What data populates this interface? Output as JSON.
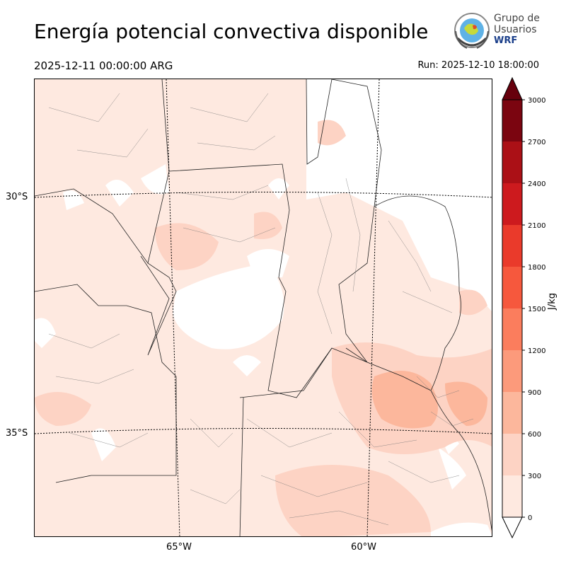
{
  "header": {
    "title": "Energía potencial convectiva disponible",
    "valid_time": "2025-12-11 00:00:00 ARG",
    "run_time": "Run: 2025-12-10 18:00:00"
  },
  "logo": {
    "line1": "Grupo de",
    "line2": "Usuarios",
    "line3": "WRF"
  },
  "map": {
    "lat_labels": [
      "30°S",
      "35°S"
    ],
    "lon_labels": [
      "65°W",
      "60°W"
    ]
  },
  "colorbar": {
    "unit": "J/kg",
    "ticks": [
      "0",
      "300",
      "600",
      "900",
      "1200",
      "1500",
      "1800",
      "2100",
      "2400",
      "2700",
      "3000"
    ],
    "levels": [
      0,
      300,
      600,
      900,
      1200,
      1500,
      1800,
      2100,
      2400,
      2700,
      3000
    ],
    "colors": [
      "#fee9e0",
      "#fdd3c4",
      "#fcb79c",
      "#fc9a7b",
      "#fb7d5d",
      "#f6583d",
      "#ea3a2b",
      "#cd1a1e",
      "#ab1016",
      "#7b0510"
    ],
    "over_color": "#67000d",
    "under_color": "#ffffff"
  }
}
